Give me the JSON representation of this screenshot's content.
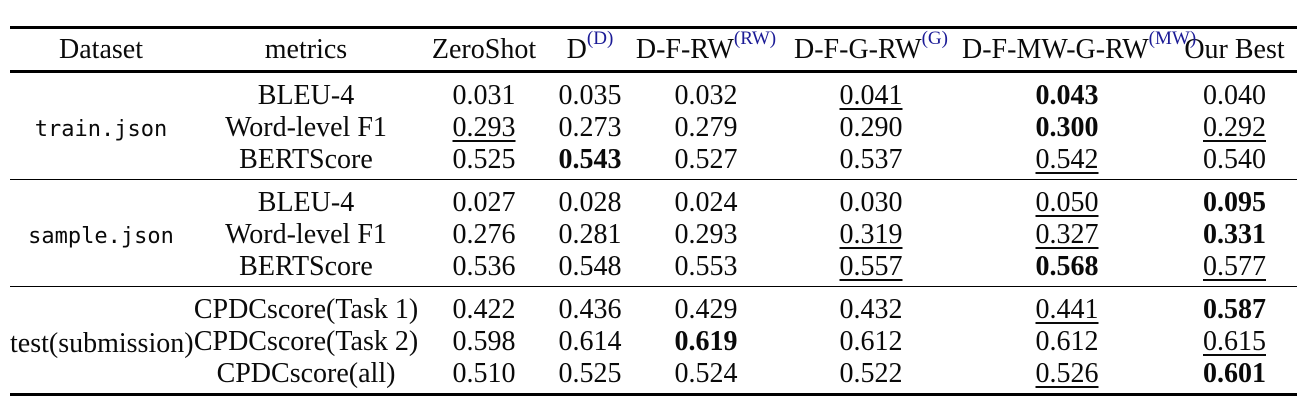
{
  "colors": {
    "text": "#0a0a0a",
    "superscript_blue": "#1b1b96",
    "rule": "#000000",
    "background": "#ffffff"
  },
  "table": {
    "columns": [
      {
        "label": "Dataset"
      },
      {
        "label": "metrics"
      },
      {
        "label": "ZeroShot"
      },
      {
        "label": "D",
        "sup": "(D)"
      },
      {
        "label": "D-F-RW",
        "sup": "(RW)"
      },
      {
        "label": "D-F-G-RW",
        "sup": "(G)"
      },
      {
        "label": "D-F-MW-G-RW",
        "sup": "(MW)"
      },
      {
        "label": "Our Best",
        "bold": true
      }
    ],
    "groups": [
      {
        "dataset": "train.json",
        "mono": true,
        "rows": [
          {
            "metric": "BLEU-4",
            "values": [
              {
                "v": "0.031"
              },
              {
                "v": "0.035"
              },
              {
                "v": "0.032"
              },
              {
                "v": "0.041",
                "u": true
              },
              {
                "v": "0.043",
                "b": true
              },
              {
                "v": "0.040"
              }
            ]
          },
          {
            "metric": "Word-level F1",
            "values": [
              {
                "v": "0.293",
                "u": true
              },
              {
                "v": "0.273"
              },
              {
                "v": "0.279"
              },
              {
                "v": "0.290"
              },
              {
                "v": "0.300",
                "b": true
              },
              {
                "v": "0.292",
                "u": true
              }
            ]
          },
          {
            "metric": "BERTScore",
            "values": [
              {
                "v": "0.525"
              },
              {
                "v": "0.543",
                "b": true
              },
              {
                "v": "0.527"
              },
              {
                "v": "0.537"
              },
              {
                "v": "0.542",
                "u": true
              },
              {
                "v": "0.540"
              }
            ]
          }
        ]
      },
      {
        "dataset": "sample.json",
        "mono": true,
        "rows": [
          {
            "metric": "BLEU-4",
            "values": [
              {
                "v": "0.027"
              },
              {
                "v": "0.028"
              },
              {
                "v": "0.024"
              },
              {
                "v": "0.030"
              },
              {
                "v": "0.050",
                "u": true
              },
              {
                "v": "0.095",
                "b": true
              }
            ]
          },
          {
            "metric": "Word-level F1",
            "values": [
              {
                "v": "0.276"
              },
              {
                "v": "0.281"
              },
              {
                "v": "0.293"
              },
              {
                "v": "0.319",
                "u": true
              },
              {
                "v": "0.327",
                "u": true
              },
              {
                "v": "0.331",
                "b": true
              }
            ]
          },
          {
            "metric": "BERTScore",
            "values": [
              {
                "v": "0.536"
              },
              {
                "v": "0.548"
              },
              {
                "v": "0.553"
              },
              {
                "v": "0.557",
                "u": true
              },
              {
                "v": "0.568",
                "b": true
              },
              {
                "v": "0.577",
                "u": true
              }
            ]
          }
        ]
      },
      {
        "dataset": "test(submission)",
        "mono": false,
        "rows": [
          {
            "metric": "CPDCscore(Task 1)",
            "values": [
              {
                "v": "0.422"
              },
              {
                "v": "0.436"
              },
              {
                "v": "0.429"
              },
              {
                "v": "0.432"
              },
              {
                "v": "0.441",
                "u": true
              },
              {
                "v": "0.587",
                "b": true
              }
            ]
          },
          {
            "metric": "CPDCscore(Task 2)",
            "values": [
              {
                "v": "0.598"
              },
              {
                "v": "0.614"
              },
              {
                "v": "0.619",
                "b": true
              },
              {
                "v": "0.612"
              },
              {
                "v": "0.612"
              },
              {
                "v": "0.615",
                "u": true
              }
            ]
          },
          {
            "metric": "CPDCscore(all)",
            "values": [
              {
                "v": "0.510"
              },
              {
                "v": "0.525"
              },
              {
                "v": "0.524"
              },
              {
                "v": "0.522"
              },
              {
                "v": "0.526",
                "u": true
              },
              {
                "v": "0.601",
                "b": true
              }
            ]
          }
        ]
      }
    ]
  }
}
